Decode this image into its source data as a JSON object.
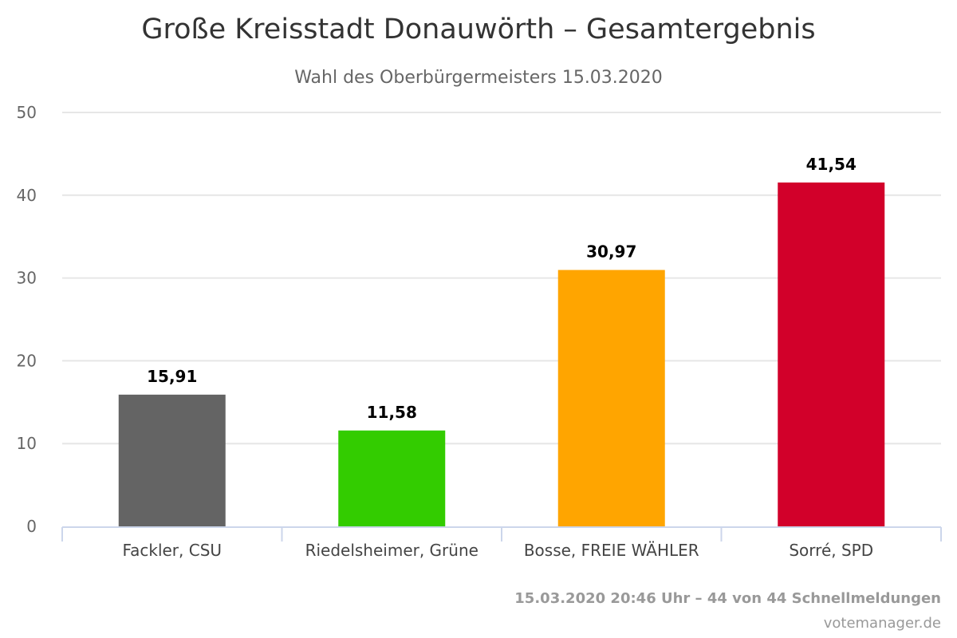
{
  "chart_data": {
    "type": "bar",
    "title": "Große Kreisstadt Donauwörth – Gesamtergebnis",
    "subtitle": "Wahl des Oberbürgermeisters 15.03.2020",
    "xlabel": "",
    "ylabel": "",
    "categories": [
      "Fackler, CSU",
      "Riedelsheimer, Grüne",
      "Bosse, FREIE WÄHLER",
      "Sorré, SPD"
    ],
    "values": [
      15.91,
      11.58,
      30.97,
      41.54
    ],
    "value_labels": [
      "15,91",
      "11,58",
      "30,97",
      "41,54"
    ],
    "colors": [
      "#646464",
      "#33cc00",
      "#ffa500",
      "#d2002a"
    ],
    "ylim": [
      0,
      50
    ],
    "yticks": [
      0,
      10,
      20,
      30,
      40,
      50
    ],
    "ytick_labels": [
      "0",
      "10",
      "20",
      "30",
      "40",
      "50"
    ],
    "grid": true,
    "legend": "none"
  },
  "footer": {
    "status": "15.03.2020 20:46 Uhr – 44 von 44 Schnellmeldungen",
    "credit": "votemanager.de"
  }
}
